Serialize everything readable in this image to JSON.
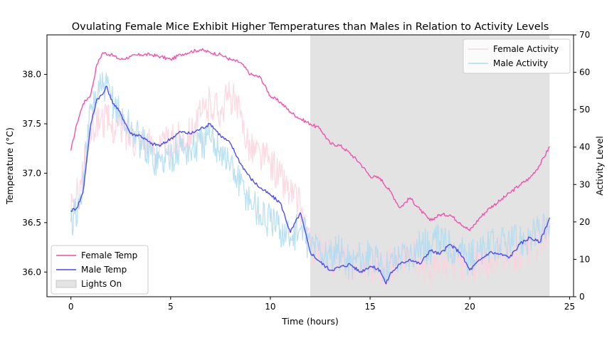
{
  "chart_data": {
    "type": "line",
    "title": "Ovulating Female Mice Exhibit Higher Temperatures than Males in Relation to Activity Levels",
    "xlabel": "Time (hours)",
    "ylabel_left": "Temperature (°C)",
    "ylabel_right": "Activity Level",
    "xlim": [
      -1.2,
      25.2
    ],
    "ylim_left": [
      35.75,
      38.4
    ],
    "ylim_right": [
      0,
      70
    ],
    "x_ticks": [
      0,
      5,
      10,
      15,
      20,
      25
    ],
    "y_left_ticks": [
      36.0,
      36.5,
      37.0,
      37.5,
      38.0
    ],
    "y_right_ticks": [
      0,
      10,
      20,
      30,
      40,
      50,
      60,
      70
    ],
    "grid": false,
    "shaded_region": {
      "name": "Lights On",
      "x": [
        12,
        24
      ],
      "color": "#e3e3e3"
    },
    "legend_left": {
      "placement": "lower-left",
      "entries": [
        "Female Temp",
        "Male Temp",
        "Lights On"
      ]
    },
    "legend_right": {
      "placement": "upper-right",
      "entries": [
        "Female Activity",
        "Male Activity"
      ]
    },
    "series": [
      {
        "name": "Female Temp",
        "axis": "left",
        "color": "#f04aa9",
        "x": [
          0,
          0.3,
          0.6,
          1.0,
          1.3,
          1.6,
          2.0,
          2.5,
          3,
          3.5,
          4,
          4.5,
          5,
          5.5,
          6,
          6.5,
          7,
          7.5,
          8,
          8.5,
          9,
          9.5,
          10,
          10.5,
          11,
          11.5,
          12,
          12.5,
          13,
          13.5,
          14,
          14.5,
          15,
          15.5,
          16,
          16.5,
          17,
          17.5,
          18,
          18.5,
          19,
          19.5,
          20,
          20.5,
          21,
          21.5,
          22,
          22.5,
          23,
          23.5,
          24
        ],
        "values": [
          37.23,
          37.5,
          37.7,
          37.8,
          38.1,
          38.22,
          38.2,
          38.15,
          38.18,
          38.2,
          38.2,
          38.18,
          38.15,
          38.2,
          38.23,
          38.25,
          38.22,
          38.2,
          38.15,
          38.12,
          38.0,
          37.97,
          37.78,
          37.72,
          37.62,
          37.55,
          37.5,
          37.45,
          37.3,
          37.28,
          37.2,
          37.1,
          36.97,
          36.95,
          36.82,
          36.65,
          36.75,
          36.63,
          36.52,
          36.58,
          36.58,
          36.5,
          36.42,
          36.55,
          36.65,
          36.72,
          36.8,
          36.88,
          36.95,
          37.08,
          37.27
        ]
      },
      {
        "name": "Male Temp",
        "axis": "left",
        "color": "#4444ee",
        "x": [
          0,
          0.3,
          0.6,
          1.0,
          1.3,
          1.6,
          1.8,
          2.0,
          2.5,
          3,
          3.5,
          4,
          4.5,
          5,
          5.5,
          6,
          6.5,
          7,
          7.5,
          8,
          8.5,
          9,
          9.5,
          10,
          10.5,
          11,
          11.5,
          12,
          12.5,
          13,
          13.5,
          14,
          14.5,
          15,
          15.5,
          15.8,
          16,
          16.5,
          17,
          17.5,
          18,
          18.5,
          19,
          19.5,
          20,
          20.5,
          21,
          21.5,
          22,
          22.5,
          23,
          23.5,
          24
        ],
        "values": [
          36.62,
          36.65,
          36.8,
          37.5,
          37.75,
          37.8,
          37.88,
          37.75,
          37.6,
          37.4,
          37.38,
          37.3,
          37.28,
          37.35,
          37.42,
          37.4,
          37.45,
          37.5,
          37.38,
          37.3,
          37.1,
          36.95,
          36.85,
          36.78,
          36.7,
          36.4,
          36.6,
          36.2,
          36.1,
          36.02,
          36.05,
          36.08,
          36.0,
          36.06,
          36.02,
          35.88,
          35.98,
          36.08,
          36.13,
          36.08,
          36.22,
          36.18,
          36.28,
          36.2,
          36.02,
          36.12,
          36.2,
          36.18,
          36.15,
          36.28,
          36.35,
          36.3,
          36.55
        ]
      },
      {
        "name": "Female Activity",
        "axis": "right",
        "color": "#fbd3df",
        "x": [
          0,
          0.5,
          1,
          1.5,
          2,
          2.5,
          3,
          3.5,
          4,
          4.5,
          5,
          5.5,
          6,
          6.5,
          7,
          7.5,
          8,
          8.5,
          9,
          9.5,
          10,
          10.5,
          11,
          11.5,
          12,
          12.5,
          13,
          13.5,
          14,
          14.5,
          15,
          15.5,
          16,
          16.5,
          17,
          17.5,
          18,
          18.5,
          19,
          19.5,
          20,
          20.5,
          21,
          21.5,
          22,
          22.5,
          23,
          23.5,
          24
        ],
        "values": [
          22,
          30,
          45,
          48,
          46,
          45,
          43,
          42,
          40,
          40,
          41,
          43,
          44,
          48,
          52,
          50,
          54,
          48,
          40,
          38,
          36,
          32,
          28,
          24,
          14,
          12,
          10,
          11,
          8,
          10,
          9,
          7,
          8,
          10,
          12,
          9,
          7,
          8,
          10,
          9,
          7,
          9,
          10,
          12,
          11,
          12,
          13,
          15,
          20
        ]
      },
      {
        "name": "Male Activity",
        "axis": "right",
        "color": "#aedcf0",
        "x": [
          0,
          0.5,
          1,
          1.5,
          2,
          2.5,
          3,
          3.5,
          4,
          4.5,
          5,
          5.5,
          6,
          6.5,
          7,
          7.5,
          8,
          8.5,
          9,
          9.5,
          10,
          10.5,
          11,
          11.5,
          12,
          12.5,
          13,
          13.5,
          14,
          14.5,
          15,
          15.5,
          16,
          16.5,
          17,
          17.5,
          18,
          18.5,
          19,
          19.5,
          20,
          20.5,
          21,
          21.5,
          22,
          22.5,
          23,
          23.5,
          24
        ],
        "values": [
          20,
          25,
          50,
          56,
          54,
          48,
          45,
          42,
          38,
          36,
          38,
          40,
          39,
          41,
          42,
          40,
          35,
          30,
          26,
          22,
          20,
          18,
          16,
          18,
          14,
          13,
          10,
          12,
          9,
          11,
          10,
          8,
          9,
          11,
          12,
          14,
          13,
          15,
          14,
          13,
          10,
          12,
          13,
          14,
          14,
          15,
          16,
          17,
          19
        ]
      }
    ]
  }
}
